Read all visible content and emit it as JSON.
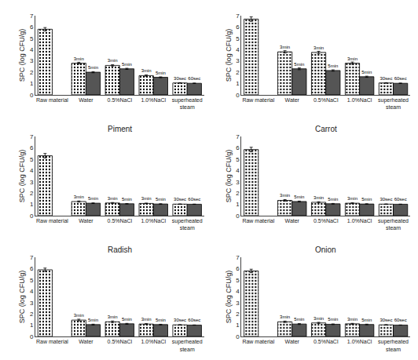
{
  "chart_data": [
    {
      "type": "bar",
      "ylabel": "SPC (log CFU/g)",
      "categories": [
        "Raw material",
        "Water",
        "0.5%NaCl",
        "1.0%NaCl",
        "superheated\nsteam"
      ],
      "series": [
        {
          "color": "#ffffff",
          "values": [
            5.8,
            2.8,
            2.6,
            1.7,
            1.05
          ],
          "errors": [
            0.15,
            0.08,
            0.06,
            0.06,
            0.02
          ],
          "labels": [
            null,
            "3min",
            "3min",
            "3min",
            "30sec"
          ]
        },
        {
          "color": "#555555",
          "values": [
            null,
            2.0,
            2.3,
            1.55,
            1.02
          ],
          "errors": [
            null,
            0.05,
            0.05,
            0.04,
            0.02
          ],
          "labels": [
            null,
            "5min",
            "5min",
            "5min",
            "60sec"
          ]
        }
      ],
      "ylim": [
        0,
        7
      ],
      "yticks": [
        0,
        1,
        2,
        3,
        4,
        5,
        6,
        7
      ],
      "grid": false
    },
    {
      "type": "bar",
      "ylabel": "SPC (log CFU/g)",
      "categories": [
        "Raw material",
        "Water",
        "0.5%NaCl",
        "1.0%NaCl",
        "superheated\nsteam"
      ],
      "series": [
        {
          "color": "#ffffff",
          "values": [
            6.7,
            3.8,
            3.75,
            2.8,
            1.05
          ],
          "errors": [
            0.2,
            0.1,
            0.1,
            0.1,
            0.02
          ],
          "labels": [
            null,
            "3min",
            "3min",
            "3min",
            "30sec"
          ]
        },
        {
          "color": "#555555",
          "values": [
            null,
            2.3,
            2.15,
            1.6,
            1.02
          ],
          "errors": [
            null,
            0.08,
            0.06,
            0.05,
            0.02
          ],
          "labels": [
            null,
            "5min",
            "5min",
            "5min",
            "60sec"
          ]
        }
      ],
      "ylim": [
        0,
        7
      ],
      "yticks": [
        0,
        1,
        2,
        3,
        4,
        5,
        6,
        7
      ],
      "grid": false
    },
    {
      "type": "bar",
      "title": "Piment",
      "ylabel": "SPC (log CFU/g)",
      "categories": [
        "Raw material",
        "Water",
        "0.5%NaCl",
        "1.0%NaCl",
        "superheated\nsteam"
      ],
      "series": [
        {
          "color": "#ffffff",
          "values": [
            5.3,
            1.25,
            1.12,
            1.08,
            1.02
          ],
          "errors": [
            0.2,
            0.05,
            0.04,
            0.03,
            0.01
          ],
          "labels": [
            null,
            "3min",
            "3min",
            "3min",
            "30sec"
          ]
        },
        {
          "color": "#555555",
          "values": [
            null,
            1.1,
            1.05,
            1.03,
            1.01
          ],
          "errors": [
            null,
            0.03,
            0.02,
            0.02,
            0.01
          ],
          "labels": [
            null,
            "5min",
            "5min",
            "5min",
            "60sec"
          ]
        }
      ],
      "ylim": [
        0,
        7
      ],
      "yticks": [
        0,
        1,
        2,
        3,
        4,
        5,
        6,
        7
      ],
      "grid": false
    },
    {
      "type": "bar",
      "title": "Carrot",
      "ylabel": "SPC (log CFU/g)",
      "categories": [
        "Raw material",
        "Water",
        "0.5%NaCl",
        "1.0%NaCl",
        "superheated\nsteam"
      ],
      "series": [
        {
          "color": "#ffffff",
          "values": [
            5.85,
            1.35,
            1.18,
            1.1,
            1.02
          ],
          "errors": [
            0.2,
            0.07,
            0.05,
            0.04,
            0.01
          ],
          "labels": [
            null,
            "3min",
            "3min",
            "3min",
            "30sec"
          ]
        },
        {
          "color": "#555555",
          "values": [
            null,
            1.25,
            1.05,
            1.03,
            1.01
          ],
          "errors": [
            null,
            0.04,
            0.03,
            0.02,
            0.01
          ],
          "labels": [
            null,
            "5min",
            "5min",
            "5min",
            "60sec"
          ]
        }
      ],
      "ylim": [
        0,
        7
      ],
      "yticks": [
        0,
        1,
        2,
        3,
        4,
        5,
        6,
        7
      ],
      "grid": false
    },
    {
      "type": "bar",
      "title": "Radish",
      "ylabel": "SPC (log CFU/g)",
      "categories": [
        "Raw material",
        "Water",
        "0.5%NaCl",
        "1.0%NaCl",
        "superheated\nsteam"
      ],
      "series": [
        {
          "color": "#ffffff",
          "values": [
            5.9,
            1.45,
            1.3,
            1.1,
            1.03
          ],
          "errors": [
            0.15,
            0.08,
            0.07,
            0.04,
            0.01
          ],
          "labels": [
            null,
            "3min",
            "3min",
            "3min",
            "30sec"
          ]
        },
        {
          "color": "#555555",
          "values": [
            null,
            1.05,
            1.12,
            1.05,
            1.01
          ],
          "errors": [
            null,
            0.04,
            0.04,
            0.03,
            0.01
          ],
          "labels": [
            null,
            "5min",
            "5min",
            "5min",
            "60sec"
          ]
        }
      ],
      "ylim": [
        0,
        7
      ],
      "yticks": [
        0,
        1,
        2,
        3,
        4,
        5,
        6,
        7
      ],
      "grid": false
    },
    {
      "type": "bar",
      "title": "Onion",
      "ylabel": "SPC (log CFU/g)",
      "categories": [
        "Raw material",
        "Water",
        "0.5%NaCl",
        "1.0%NaCl",
        "superheated\nsteam"
      ],
      "series": [
        {
          "color": "#ffffff",
          "values": [
            5.8,
            1.3,
            1.2,
            1.12,
            1.03
          ],
          "errors": [
            0.15,
            0.06,
            0.05,
            0.04,
            0.01
          ],
          "labels": [
            null,
            "3min",
            "3min",
            "3min",
            "30sec"
          ]
        },
        {
          "color": "#555555",
          "values": [
            null,
            1.1,
            1.08,
            1.06,
            1.01
          ],
          "errors": [
            null,
            0.04,
            0.03,
            0.03,
            0.01
          ],
          "labels": [
            null,
            "5min",
            "5min",
            "5min",
            "60sec"
          ]
        }
      ],
      "ylim": [
        0,
        7
      ],
      "yticks": [
        0,
        1,
        2,
        3,
        4,
        5,
        6,
        7
      ],
      "grid": false
    }
  ]
}
